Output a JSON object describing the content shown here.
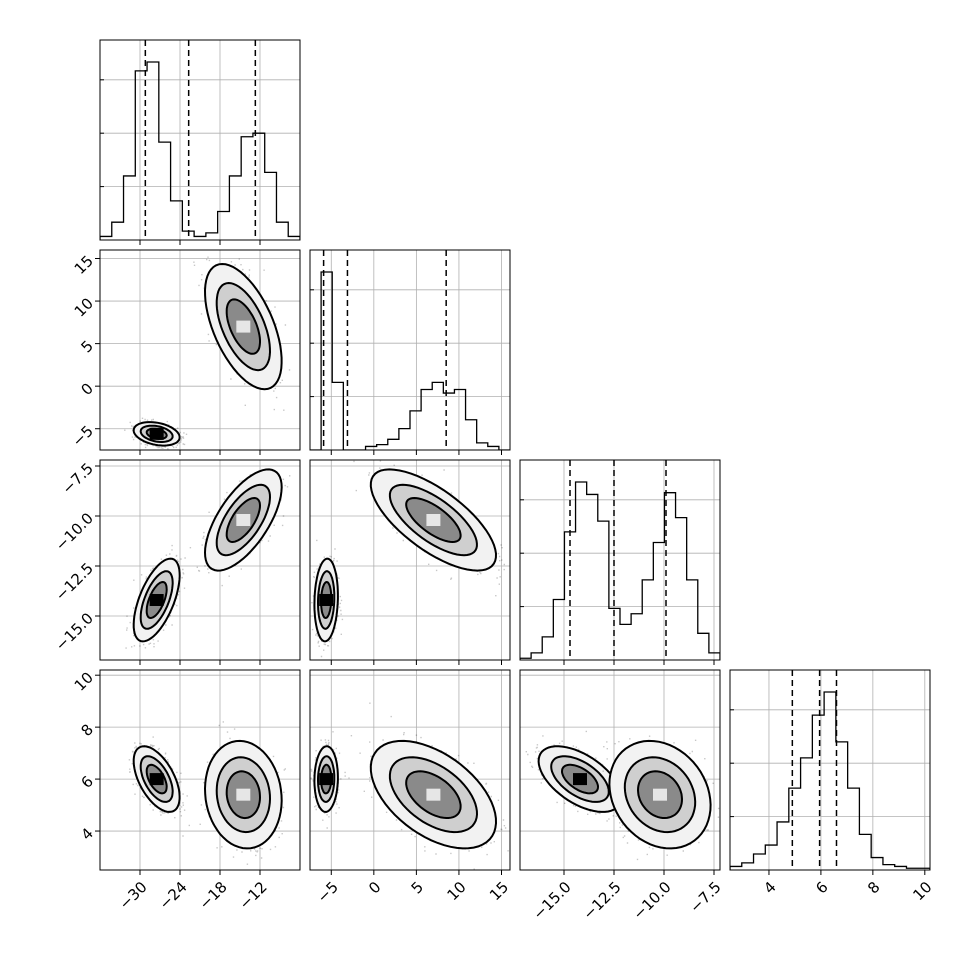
{
  "chart_data": {
    "type": "corner",
    "grid": true,
    "parameters": [
      {
        "range": [
          -36,
          -6
        ],
        "ticks": [
          -30,
          -24,
          -18,
          -12
        ],
        "tick_labels": [
          "−30",
          "−24",
          "−18",
          "−12"
        ],
        "quantiles": [
          -29.2,
          -22.7,
          -12.7
        ],
        "hist": [
          0.02,
          0.1,
          0.36,
          0.95,
          1.0,
          0.55,
          0.22,
          0.05,
          0.02,
          0.04,
          0.16,
          0.36,
          0.58,
          0.6,
          0.38,
          0.1,
          0.02
        ]
      },
      {
        "range": [
          -7.5,
          16
        ],
        "ticks": [
          -5,
          0,
          5,
          10,
          15
        ],
        "tick_labels": [
          "−5",
          "0",
          "5",
          "10",
          "15"
        ],
        "quantiles": [
          -5.9,
          -3.1,
          8.5
        ],
        "hist": [
          0.0,
          1.0,
          0.38,
          0.0,
          0.0,
          0.02,
          0.03,
          0.06,
          0.12,
          0.22,
          0.34,
          0.38,
          0.32,
          0.34,
          0.17,
          0.04,
          0.02,
          0.0
        ]
      },
      {
        "range": [
          -17.2,
          -7.2
        ],
        "ticks": [
          -15.0,
          -12.5,
          -10.0,
          -7.5
        ],
        "tick_labels": [
          "−15.0",
          "−12.5",
          "−10.0",
          "−7.5"
        ],
        "quantiles": [
          -14.7,
          -12.5,
          -9.9
        ],
        "hist": [
          0.01,
          0.04,
          0.13,
          0.34,
          0.72,
          1.0,
          0.93,
          0.78,
          0.29,
          0.2,
          0.26,
          0.45,
          0.66,
          0.94,
          0.8,
          0.45,
          0.15,
          0.04
        ]
      },
      {
        "range": [
          2.5,
          10.2
        ],
        "ticks": [
          4,
          6,
          8,
          10
        ],
        "tick_labels": [
          "4",
          "6",
          "8",
          "10"
        ],
        "quantiles": [
          4.9,
          5.95,
          6.6
        ],
        "hist": [
          0.02,
          0.04,
          0.09,
          0.14,
          0.27,
          0.46,
          0.63,
          0.87,
          1.0,
          0.72,
          0.46,
          0.2,
          0.07,
          0.03,
          0.02,
          0.01,
          0.01
        ]
      }
    ],
    "modes": [
      {
        "mean": [
          -27.5,
          -5.6,
          -14.2,
          6.0
        ],
        "sd": [
          1.5,
          0.6,
          0.9,
          0.55
        ],
        "rho": [
          [
            0,
            1
          ],
          [
            0.6,
            -0.75
          ],
          [
            0.6,
            -0.7
          ],
          [
            0.6,
            0.1,
            -0.7
          ],
          [
            0.1,
            0.05,
            -0.5
          ]
        ],
        "weight": 0.58
      },
      {
        "mean": [
          -14.5,
          7.0,
          -10.2,
          5.4
        ],
        "sd": [
          2.5,
          3.2,
          1.1,
          0.9
        ],
        "rho": [
          [
            0,
            1
          ],
          [
            0.6,
            -0.75
          ],
          [
            0.6,
            -0.7
          ],
          [
            0.6,
            0.1,
            -0.7
          ],
          [
            0.1,
            0.05,
            -0.5
          ]
        ],
        "weight": 0.42
      }
    ],
    "correlations": {
      "p1_p0": [
        -0.3,
        -0.55
      ],
      "p2_p0": [
        0.6,
        0.65
      ],
      "p2_p1": [
        0.1,
        -0.7
      ],
      "p3_p0": [
        -0.55,
        -0.1
      ],
      "p3_p1": [
        0.05,
        -0.5
      ],
      "p3_p2": [
        -0.55,
        -0.2
      ]
    },
    "contour_levels_sigma": [
      1.0,
      1.6,
      2.3
    ]
  }
}
